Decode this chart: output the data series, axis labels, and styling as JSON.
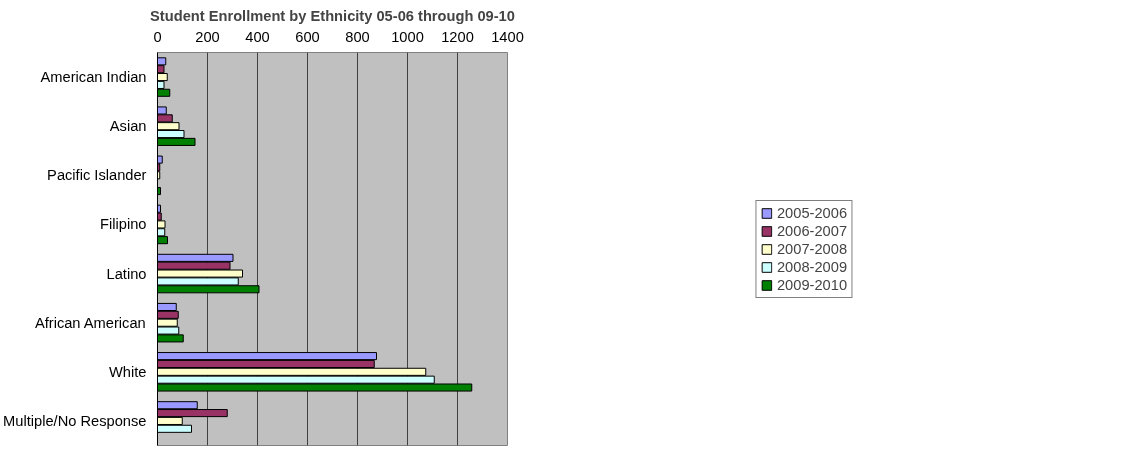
{
  "chart_data": {
    "type": "bar",
    "orientation": "horizontal",
    "title": "Student Enrollment by Ethnicity 05-06 through 09-10",
    "categories": [
      "American Indian",
      "Asian",
      "Pacific Islander",
      "Filipino",
      "Latino",
      "African American",
      "White",
      "Multiple/No Response"
    ],
    "series": [
      {
        "name": "2005-2006",
        "color": "#9999ff",
        "values": [
          33,
          35,
          19,
          12,
          302,
          75,
          876,
          159
        ]
      },
      {
        "name": "2006-2007",
        "color": "#993366",
        "values": [
          26,
          59,
          9,
          15,
          290,
          83,
          867,
          279
        ]
      },
      {
        "name": "2007-2008",
        "color": "#ffffcc",
        "values": [
          39,
          86,
          9,
          30,
          340,
          79,
          1073,
          99
        ]
      },
      {
        "name": "2008-2009",
        "color": "#ccffff",
        "values": [
          26,
          106,
          null,
          29,
          323,
          85,
          1107,
          136
        ]
      },
      {
        "name": "2009-2010",
        "color": "#008000",
        "values": [
          49,
          150,
          12,
          40,
          406,
          103,
          1257,
          null
        ]
      }
    ],
    "xlim": [
      0,
      1400
    ],
    "xticks": [
      0,
      200,
      400,
      600,
      800,
      1000,
      1200,
      1400
    ],
    "grid": "x",
    "legend": "right"
  }
}
